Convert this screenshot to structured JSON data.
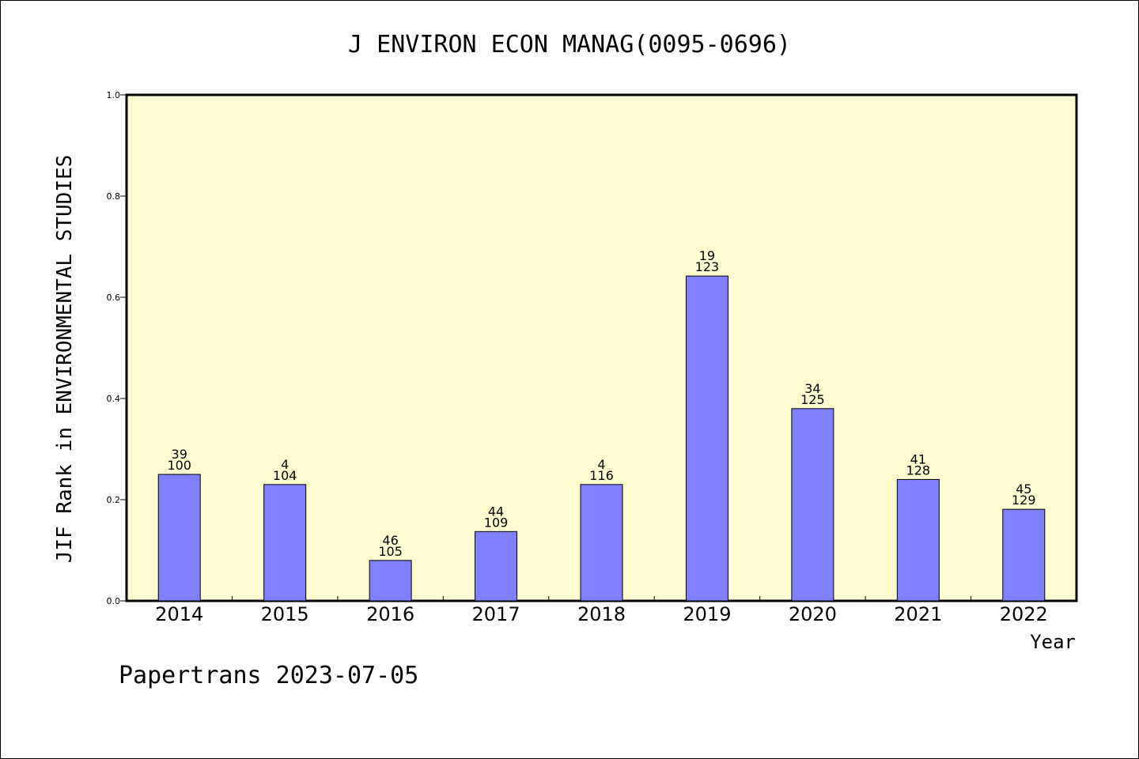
{
  "chart_data": {
    "type": "bar",
    "title": "J ENVIRON ECON MANAG(0095-0696)",
    "xlabel": "Year",
    "ylabel": "JIF Rank in ENVIRONMENTAL STUDIES",
    "ylim": [
      0,
      1.0
    ],
    "yticks": [
      "0.0",
      "0.2",
      "0.4",
      "0.6",
      "0.8",
      "1.0"
    ],
    "categories": [
      "2014",
      "2015",
      "2016",
      "2017",
      "2018",
      "2019",
      "2020",
      "2021",
      "2022"
    ],
    "values": [
      0.25,
      0.23,
      0.08,
      0.137,
      0.23,
      0.642,
      0.38,
      0.24,
      0.181
    ],
    "ranks": [
      "39",
      "4",
      "46",
      "44",
      "4",
      "19",
      "34",
      "41",
      "45"
    ],
    "totals": [
      "100",
      "104",
      "105",
      "109",
      "116",
      "123",
      "125",
      "128",
      "129"
    ],
    "grid": false,
    "colors": {
      "bar": "#8080ff",
      "plot_bg": "#ffffd2"
    }
  },
  "footer": {
    "source": "Papertrans 2023-07-05"
  }
}
